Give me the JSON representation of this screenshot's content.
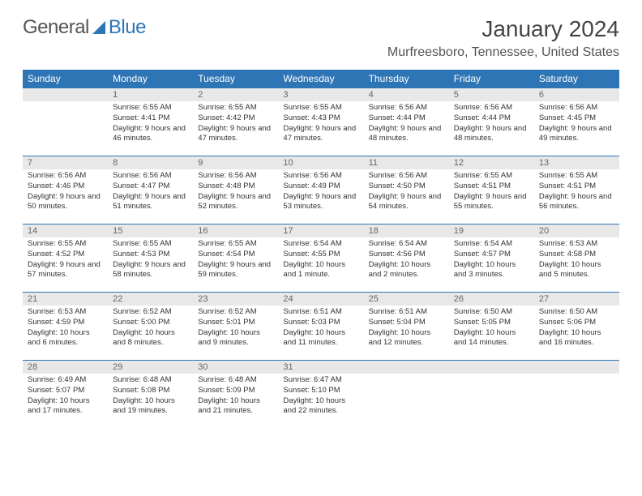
{
  "logo": {
    "text1": "General",
    "text2": "Blue"
  },
  "title": "January 2024",
  "location": "Murfreesboro, Tennessee, United States",
  "weekdays": [
    "Sunday",
    "Monday",
    "Tuesday",
    "Wednesday",
    "Thursday",
    "Friday",
    "Saturday"
  ],
  "colors": {
    "header_bg": "#2e75b6",
    "daynum_bg": "#e8e8e8",
    "border_top": "#2e75b6"
  },
  "layout": {
    "first_weekday_index": 1,
    "days_in_month": 31
  },
  "days": [
    {
      "n": 1,
      "sunrise": "6:55 AM",
      "sunset": "4:41 PM",
      "daylight": "9 hours and 46 minutes."
    },
    {
      "n": 2,
      "sunrise": "6:55 AM",
      "sunset": "4:42 PM",
      "daylight": "9 hours and 47 minutes."
    },
    {
      "n": 3,
      "sunrise": "6:55 AM",
      "sunset": "4:43 PM",
      "daylight": "9 hours and 47 minutes."
    },
    {
      "n": 4,
      "sunrise": "6:56 AM",
      "sunset": "4:44 PM",
      "daylight": "9 hours and 48 minutes."
    },
    {
      "n": 5,
      "sunrise": "6:56 AM",
      "sunset": "4:44 PM",
      "daylight": "9 hours and 48 minutes."
    },
    {
      "n": 6,
      "sunrise": "6:56 AM",
      "sunset": "4:45 PM",
      "daylight": "9 hours and 49 minutes."
    },
    {
      "n": 7,
      "sunrise": "6:56 AM",
      "sunset": "4:46 PM",
      "daylight": "9 hours and 50 minutes."
    },
    {
      "n": 8,
      "sunrise": "6:56 AM",
      "sunset": "4:47 PM",
      "daylight": "9 hours and 51 minutes."
    },
    {
      "n": 9,
      "sunrise": "6:56 AM",
      "sunset": "4:48 PM",
      "daylight": "9 hours and 52 minutes."
    },
    {
      "n": 10,
      "sunrise": "6:56 AM",
      "sunset": "4:49 PM",
      "daylight": "9 hours and 53 minutes."
    },
    {
      "n": 11,
      "sunrise": "6:56 AM",
      "sunset": "4:50 PM",
      "daylight": "9 hours and 54 minutes."
    },
    {
      "n": 12,
      "sunrise": "6:55 AM",
      "sunset": "4:51 PM",
      "daylight": "9 hours and 55 minutes."
    },
    {
      "n": 13,
      "sunrise": "6:55 AM",
      "sunset": "4:51 PM",
      "daylight": "9 hours and 56 minutes."
    },
    {
      "n": 14,
      "sunrise": "6:55 AM",
      "sunset": "4:52 PM",
      "daylight": "9 hours and 57 minutes."
    },
    {
      "n": 15,
      "sunrise": "6:55 AM",
      "sunset": "4:53 PM",
      "daylight": "9 hours and 58 minutes."
    },
    {
      "n": 16,
      "sunrise": "6:55 AM",
      "sunset": "4:54 PM",
      "daylight": "9 hours and 59 minutes."
    },
    {
      "n": 17,
      "sunrise": "6:54 AM",
      "sunset": "4:55 PM",
      "daylight": "10 hours and 1 minute."
    },
    {
      "n": 18,
      "sunrise": "6:54 AM",
      "sunset": "4:56 PM",
      "daylight": "10 hours and 2 minutes."
    },
    {
      "n": 19,
      "sunrise": "6:54 AM",
      "sunset": "4:57 PM",
      "daylight": "10 hours and 3 minutes."
    },
    {
      "n": 20,
      "sunrise": "6:53 AM",
      "sunset": "4:58 PM",
      "daylight": "10 hours and 5 minutes."
    },
    {
      "n": 21,
      "sunrise": "6:53 AM",
      "sunset": "4:59 PM",
      "daylight": "10 hours and 6 minutes."
    },
    {
      "n": 22,
      "sunrise": "6:52 AM",
      "sunset": "5:00 PM",
      "daylight": "10 hours and 8 minutes."
    },
    {
      "n": 23,
      "sunrise": "6:52 AM",
      "sunset": "5:01 PM",
      "daylight": "10 hours and 9 minutes."
    },
    {
      "n": 24,
      "sunrise": "6:51 AM",
      "sunset": "5:03 PM",
      "daylight": "10 hours and 11 minutes."
    },
    {
      "n": 25,
      "sunrise": "6:51 AM",
      "sunset": "5:04 PM",
      "daylight": "10 hours and 12 minutes."
    },
    {
      "n": 26,
      "sunrise": "6:50 AM",
      "sunset": "5:05 PM",
      "daylight": "10 hours and 14 minutes."
    },
    {
      "n": 27,
      "sunrise": "6:50 AM",
      "sunset": "5:06 PM",
      "daylight": "10 hours and 16 minutes."
    },
    {
      "n": 28,
      "sunrise": "6:49 AM",
      "sunset": "5:07 PM",
      "daylight": "10 hours and 17 minutes."
    },
    {
      "n": 29,
      "sunrise": "6:48 AM",
      "sunset": "5:08 PM",
      "daylight": "10 hours and 19 minutes."
    },
    {
      "n": 30,
      "sunrise": "6:48 AM",
      "sunset": "5:09 PM",
      "daylight": "10 hours and 21 minutes."
    },
    {
      "n": 31,
      "sunrise": "6:47 AM",
      "sunset": "5:10 PM",
      "daylight": "10 hours and 22 minutes."
    }
  ],
  "labels": {
    "sunrise": "Sunrise:",
    "sunset": "Sunset:",
    "daylight": "Daylight:"
  }
}
